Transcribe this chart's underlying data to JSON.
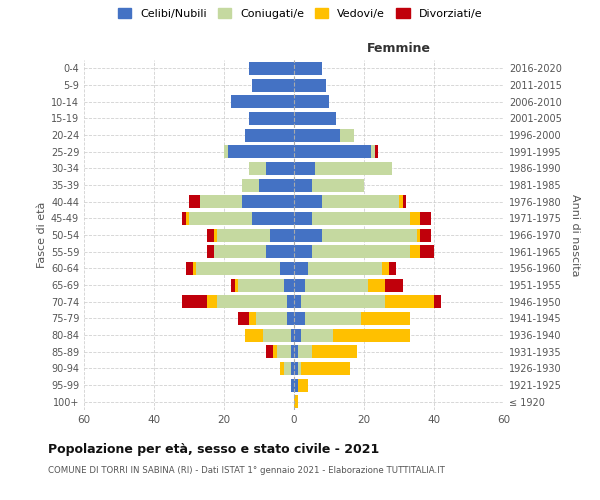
{
  "age_groups": [
    "100+",
    "95-99",
    "90-94",
    "85-89",
    "80-84",
    "75-79",
    "70-74",
    "65-69",
    "60-64",
    "55-59",
    "50-54",
    "45-49",
    "40-44",
    "35-39",
    "30-34",
    "25-29",
    "20-24",
    "15-19",
    "10-14",
    "5-9",
    "0-4"
  ],
  "birth_years": [
    "≤ 1920",
    "1921-1925",
    "1926-1930",
    "1931-1935",
    "1936-1940",
    "1941-1945",
    "1946-1950",
    "1951-1955",
    "1956-1960",
    "1961-1965",
    "1966-1970",
    "1971-1975",
    "1976-1980",
    "1981-1985",
    "1986-1990",
    "1991-1995",
    "1996-2000",
    "2001-2005",
    "2006-2010",
    "2011-2015",
    "2016-2020"
  ],
  "male": {
    "celibi": [
      0,
      1,
      1,
      1,
      1,
      2,
      2,
      3,
      4,
      8,
      7,
      12,
      15,
      10,
      8,
      19,
      14,
      13,
      18,
      12,
      13
    ],
    "coniugati": [
      0,
      0,
      2,
      4,
      8,
      9,
      20,
      13,
      24,
      15,
      15,
      18,
      12,
      5,
      5,
      1,
      0,
      0,
      0,
      0,
      0
    ],
    "vedovi": [
      0,
      0,
      1,
      1,
      5,
      2,
      3,
      1,
      1,
      0,
      1,
      1,
      0,
      0,
      0,
      0,
      0,
      0,
      0,
      0,
      0
    ],
    "divorziati": [
      0,
      0,
      0,
      2,
      0,
      3,
      7,
      1,
      2,
      2,
      2,
      1,
      3,
      0,
      0,
      0,
      0,
      0,
      0,
      0,
      0
    ]
  },
  "female": {
    "nubili": [
      0,
      1,
      1,
      1,
      2,
      3,
      2,
      3,
      4,
      5,
      8,
      5,
      8,
      5,
      6,
      22,
      13,
      12,
      10,
      9,
      8
    ],
    "coniugate": [
      0,
      0,
      1,
      4,
      9,
      16,
      24,
      18,
      21,
      28,
      27,
      28,
      22,
      15,
      22,
      1,
      4,
      0,
      0,
      0,
      0
    ],
    "vedove": [
      1,
      3,
      14,
      13,
      22,
      14,
      14,
      5,
      2,
      3,
      1,
      3,
      1,
      0,
      0,
      0,
      0,
      0,
      0,
      0,
      0
    ],
    "divorziate": [
      0,
      0,
      0,
      0,
      0,
      0,
      2,
      5,
      2,
      4,
      3,
      3,
      1,
      0,
      0,
      1,
      0,
      0,
      0,
      0,
      0
    ]
  },
  "colors": {
    "celibi": "#4472c4",
    "coniugati": "#c5d9a0",
    "vedovi": "#ffc000",
    "divorziati": "#c0000b"
  },
  "xlim": 60,
  "title": "Popolazione per età, sesso e stato civile - 2021",
  "subtitle": "COMUNE DI TORRI IN SABINA (RI) - Dati ISTAT 1° gennaio 2021 - Elaborazione TUTTITALIA.IT",
  "ylabel_left": "Fasce di età",
  "ylabel_right": "Anni di nascita",
  "xlabel_femmine": "Femmine",
  "bg_color": "#ffffff",
  "grid_color": "#cccccc"
}
